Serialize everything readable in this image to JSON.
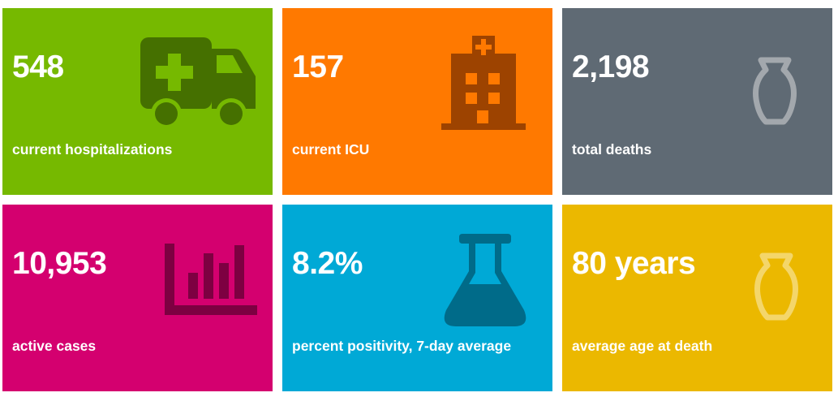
{
  "tiles": [
    {
      "value": "548",
      "label": "current hospitalizations",
      "icon": "ambulance-icon",
      "color": "#76b900",
      "icon_color": "#457000"
    },
    {
      "value": "157",
      "label": "current ICU",
      "icon": "hospital-icon",
      "color": "#ff7900",
      "icon_color": "#9d4300"
    },
    {
      "value": "2,198",
      "label": "total deaths",
      "icon": "urn-icon",
      "color": "#5f6a74",
      "icon_color": "#a3a8ad"
    },
    {
      "value": "10,953",
      "label": "active cases",
      "icon": "bar-chart-icon",
      "color": "#d4006f",
      "icon_color": "#7d0041"
    },
    {
      "value": "8.2%",
      "label": "percent positivity, 7-day average",
      "icon": "flask-icon",
      "color": "#00a9d6",
      "icon_color": "#006b89"
    },
    {
      "value": "80 years",
      "label": "average age at death",
      "icon": "urn-icon",
      "color": "#ebb800",
      "icon_color": "#f4d66a"
    }
  ]
}
